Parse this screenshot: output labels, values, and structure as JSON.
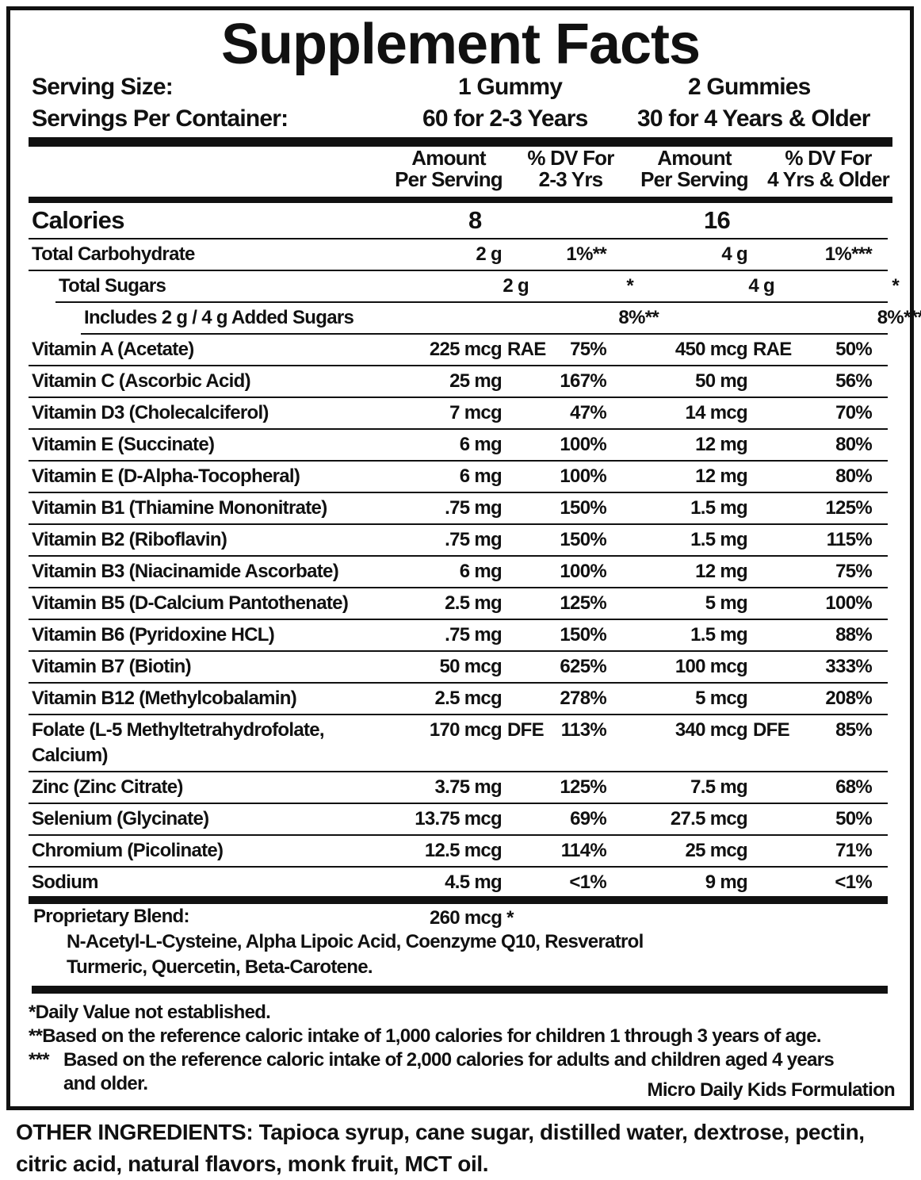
{
  "title": "Supplement Facts",
  "serving": {
    "size_label": "Serving Size:",
    "size_1": "1 Gummy",
    "size_2": "2 Gummies",
    "per_container_label": "Servings Per Container:",
    "per_container_1": "60 for 2-3 Years",
    "per_container_2": "30 for 4 Years & Older"
  },
  "columns": [
    {
      "line1": "Amount",
      "line2": "Per Serving"
    },
    {
      "line1": "% DV For",
      "line2": "2-3 Yrs"
    },
    {
      "line1": "Amount",
      "line2": "Per Serving"
    },
    {
      "line1": "% DV For",
      "line2": "4 Yrs & Older"
    }
  ],
  "calories": {
    "label": "Calories",
    "value_1": "8",
    "value_2": "16"
  },
  "rows": [
    {
      "name": "Total Carbohydrate",
      "a1": "2 g",
      "p1": "1%**",
      "a2": "4 g",
      "p2": "1%***"
    },
    {
      "name": "Total Sugars",
      "a1": "2 g",
      "p1": "*",
      "a2": "4 g",
      "p2": "*",
      "indent": 1
    },
    {
      "name": "Includes 2 g / 4 g Added Sugars",
      "a1": "",
      "p1": "8%**",
      "a2": "",
      "p2": "8%***",
      "indent": 2
    },
    {
      "name": "Vitamin A (Acetate)",
      "a1": "225 mcg",
      "s1": "RAE",
      "p1": "75%",
      "a2": "450 mcg",
      "s2": "RAE",
      "p2": "50%"
    },
    {
      "name": "Vitamin C (Ascorbic Acid)",
      "a1": "25 mg",
      "p1": "167%",
      "a2": "50 mg",
      "p2": "56%"
    },
    {
      "name": "Vitamin D3 (Cholecalciferol)",
      "a1": "7 mcg",
      "p1": "47%",
      "a2": "14 mcg",
      "p2": "70%"
    },
    {
      "name": "Vitamin E (Succinate)",
      "a1": "6 mg",
      "p1": "100%",
      "a2": "12 mg",
      "p2": "80%"
    },
    {
      "name": "Vitamin E (D-Alpha-Tocopheral)",
      "a1": "6 mg",
      "p1": "100%",
      "a2": "12 mg",
      "p2": "80%"
    },
    {
      "name": "Vitamin B1 (Thiamine Mononitrate)",
      "a1": ".75 mg",
      "p1": "150%",
      "a2": "1.5 mg",
      "p2": "125%"
    },
    {
      "name": "Vitamin B2 (Riboflavin)",
      "a1": ".75 mg",
      "p1": "150%",
      "a2": "1.5 mg",
      "p2": "115%"
    },
    {
      "name": "Vitamin B3 (Niacinamide Ascorbate)",
      "a1": "6 mg",
      "p1": "100%",
      "a2": "12 mg",
      "p2": "75%"
    },
    {
      "name": "Vitamin B5 (D-Calcium Pantothenate)",
      "a1": "2.5 mg",
      "p1": "125%",
      "a2": "5 mg",
      "p2": "100%"
    },
    {
      "name": "Vitamin B6 (Pyridoxine HCL)",
      "a1": ".75 mg",
      "p1": "150%",
      "a2": "1.5 mg",
      "p2": "88%"
    },
    {
      "name": "Vitamin B7 (Biotin)",
      "a1": "50 mcg",
      "p1": "625%",
      "a2": "100 mcg",
      "p2": "333%"
    },
    {
      "name": "Vitamin B12 (Methylcobalamin)",
      "a1": "2.5 mcg",
      "p1": "278%",
      "a2": "5 mcg",
      "p2": "208%"
    },
    {
      "name": "Folate (L-5 Methyltetrahydrofolate,",
      "name2": "Calcium)",
      "a1": "170 mcg",
      "s1": "DFE",
      "p1": "113%",
      "a2": "340 mcg",
      "s2": "DFE",
      "p2": "85%"
    },
    {
      "name": "Zinc (Zinc Citrate)",
      "a1": "3.75 mg",
      "p1": "125%",
      "a2": "7.5 mg",
      "p2": "68%"
    },
    {
      "name": "Selenium (Glycinate)",
      "a1": "13.75 mcg",
      "p1": "69%",
      "a2": "27.5 mcg",
      "p2": "50%"
    },
    {
      "name": "Chromium (Picolinate)",
      "a1": "12.5 mcg",
      "p1": "114%",
      "a2": "25 mcg",
      "p2": "71%"
    },
    {
      "name": "Sodium",
      "a1": "4.5 mg",
      "p1": "<1%",
      "a2": "9 mg",
      "p2": "<1%"
    }
  ],
  "blend": {
    "label": "Proprietary Blend:",
    "amount": "260 mcg *",
    "line1": "N-Acetyl-L-Cysteine, Alpha Lipoic Acid, Coenzyme Q10, Resveratrol",
    "line2": "Turmeric, Quercetin, Beta-Carotene."
  },
  "footnotes": {
    "f1": "*Daily Value not established.",
    "f2": "**Based on the reference caloric intake of 1,000 calories for children 1 through 3 years of age.",
    "f3_mark": "***",
    "f3": "Based on the reference caloric intake of 2,000 calories for adults and children aged 4 years",
    "f3b": "and older.",
    "formulation": "Micro Daily Kids Formulation"
  },
  "other_ingredients": "OTHER INGREDIENTS: Tapioca syrup, cane sugar, distilled water, dextrose, pectin, citric acid, natural flavors, monk fruit, MCT oil."
}
